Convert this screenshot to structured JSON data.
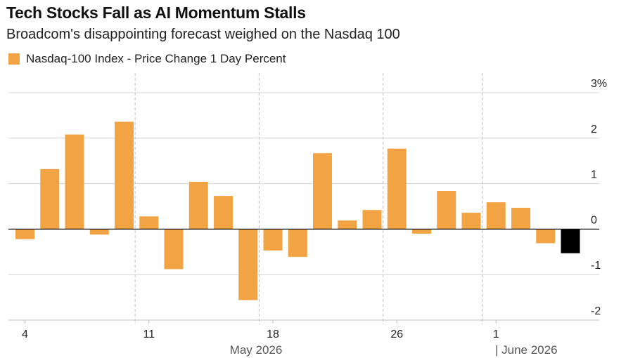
{
  "chart_data": {
    "type": "bar",
    "title": "Tech Stocks Fall as AI Momentum Stalls",
    "subtitle": "Broadcom's disappointing forecast weighed on the Nasdaq 100",
    "series": [
      {
        "name": "Nasdaq-100 Index - Price Change 1 Day Percent",
        "color": "#f2a444",
        "values": [
          -0.22,
          1.32,
          2.08,
          -0.12,
          2.36,
          0.28,
          -0.88,
          1.04,
          0.73,
          -1.56,
          -0.47,
          -0.61,
          1.67,
          0.19,
          0.42,
          1.77,
          -0.1,
          0.84,
          0.36,
          0.59,
          0.47,
          -0.31,
          -0.53
        ]
      }
    ],
    "highlight_color": "#000000",
    "highlight_index": 22,
    "y_ticks": [
      {
        "value": 3,
        "label": "3%"
      },
      {
        "value": 2,
        "label": "2"
      },
      {
        "value": 1,
        "label": "1"
      },
      {
        "value": 0,
        "label": "0"
      },
      {
        "value": -1,
        "label": "-1"
      },
      {
        "value": -2,
        "label": "-2"
      }
    ],
    "ylim": [
      -2,
      3
    ],
    "x_ticks": [
      {
        "label": "4",
        "index": 0
      },
      {
        "label": "11",
        "index": 5
      },
      {
        "label": "18",
        "index": 10
      },
      {
        "label": "26",
        "index": 15
      },
      {
        "label": "1",
        "index": 19
      }
    ],
    "month_labels": [
      {
        "label": "May 2026"
      },
      {
        "label": "| June 2026"
      }
    ],
    "gridlines": true,
    "legend_position": "top-left"
  }
}
